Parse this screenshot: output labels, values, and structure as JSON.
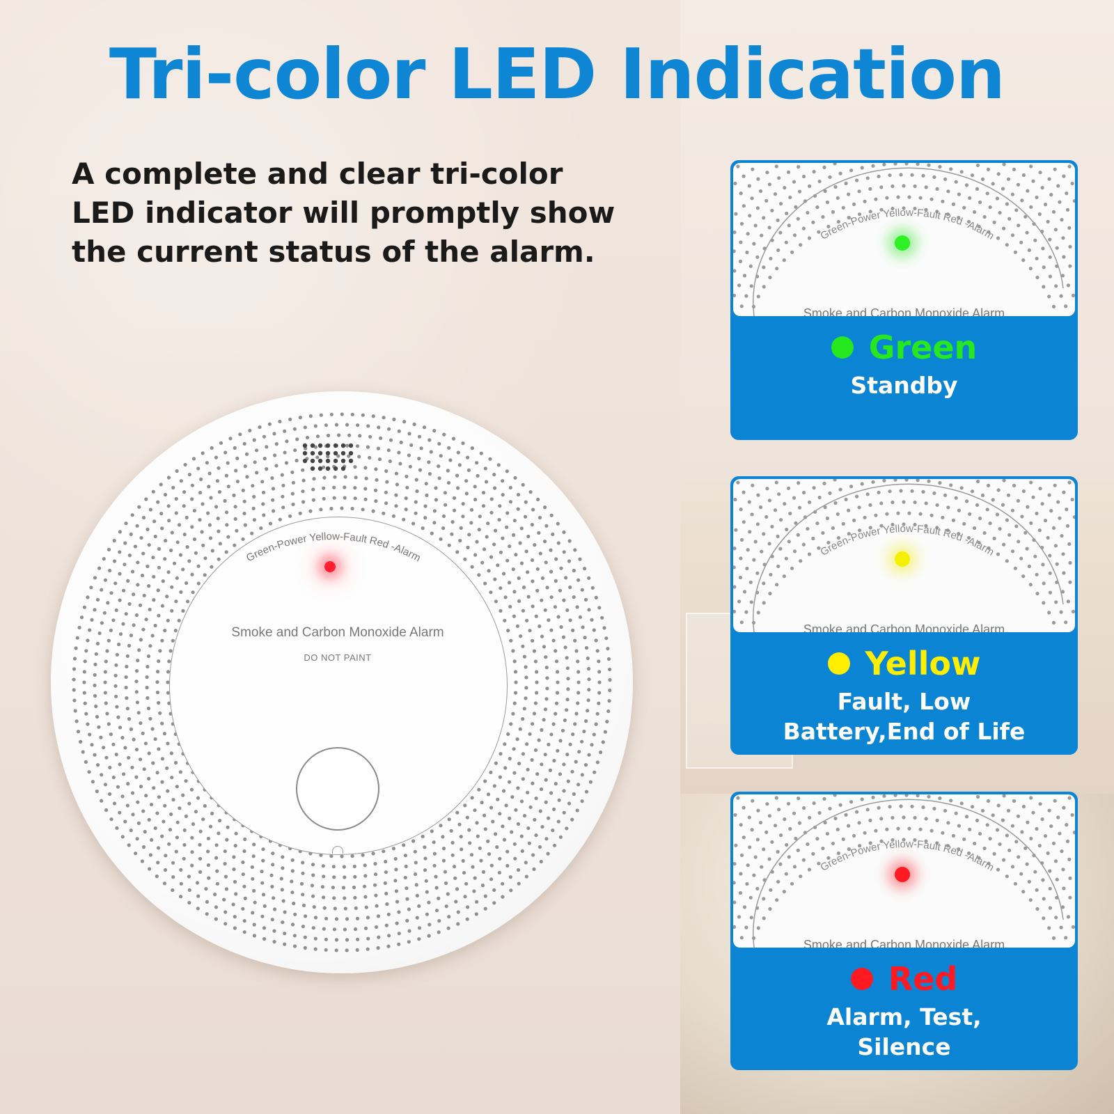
{
  "title": "Tri-color LED Indication",
  "description": "A complete and clear tri-color LED indicator will promptly show the current status of the alarm.",
  "description_lines": [
    "A complete and clear tri-color",
    "LED indicator will promptly show",
    "the current status of the alarm."
  ],
  "detector": {
    "arc_label": "Green-Power Yellow-Fault Red -Alarm",
    "product_name": "Smoke and Carbon Monoxide Alarm",
    "warning": "DO NOT PAINT",
    "led_color": "#ff1f2f"
  },
  "cards": [
    {
      "color_name": "Green",
      "color": "#27e81f",
      "status_lines": [
        "Standby"
      ],
      "arc_label": "Green-Power Yellow-Fault Red -Alarm",
      "product_name": "Smoke and Carbon Monoxide Alarm"
    },
    {
      "color_name": "Yellow",
      "color": "#ffee00",
      "status_lines": [
        "Fault, Low",
        "Battery,End of Life"
      ],
      "arc_label": "Green-Power Yellow-Fault Red -Alarm",
      "product_name": "Smoke and Carbon Monoxide Alarm"
    },
    {
      "color_name": "Red",
      "color": "#ff1a22",
      "status_lines": [
        "Alarm, Test,",
        "Silence"
      ],
      "arc_label": "Green-Power Yellow-Fault Red -Alarm",
      "product_name": "Smoke and Carbon Monoxide Alarm"
    }
  ],
  "colors": {
    "title_blue": "#0e86d4",
    "card_blue": "#0b84d4"
  }
}
